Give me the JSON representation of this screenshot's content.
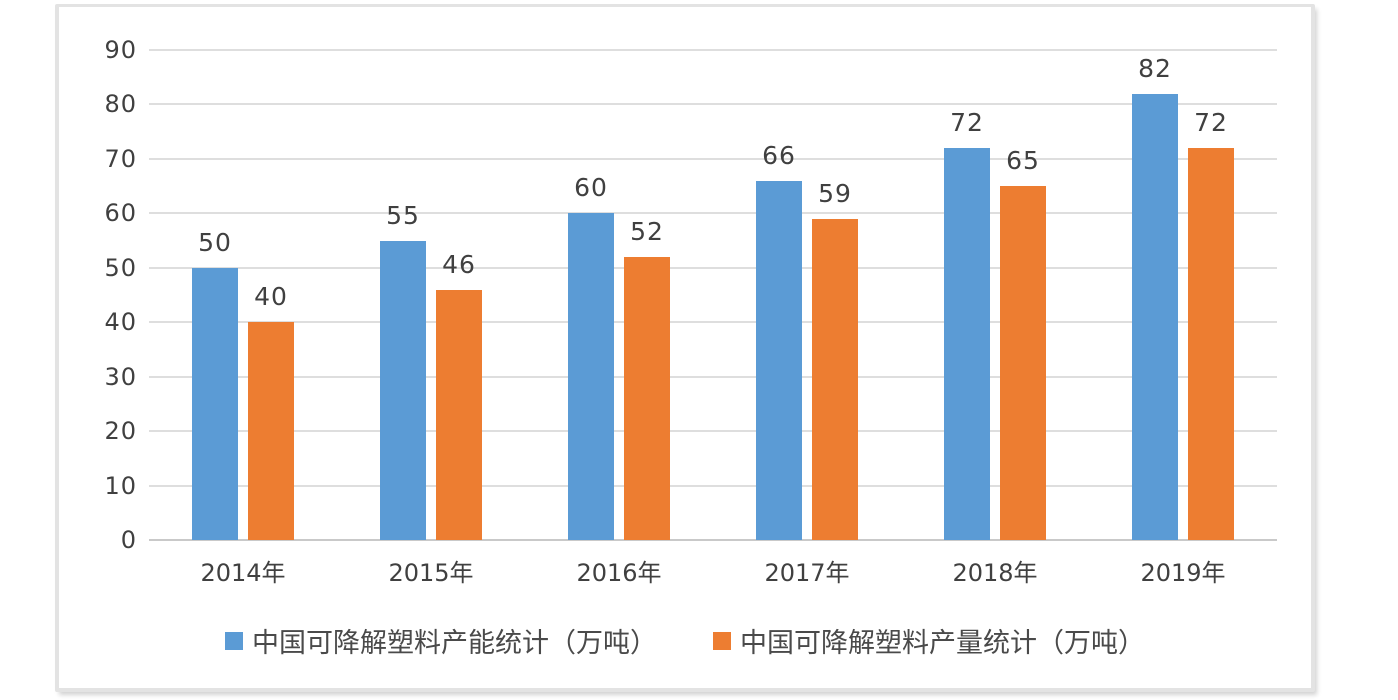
{
  "chart_data": {
    "type": "bar",
    "title": "",
    "xlabel": "",
    "ylabel": "",
    "categories": [
      "2014年",
      "2015年",
      "2016年",
      "2017年",
      "2018年",
      "2019年"
    ],
    "series": [
      {
        "name": "中国可降解塑料产能统计（万吨）",
        "color": "#5B9BD5",
        "values": [
          50,
          55,
          60,
          66,
          72,
          82
        ]
      },
      {
        "name": "中国可降解塑料产量统计（万吨）",
        "color": "#ED7D31",
        "values": [
          40,
          46,
          52,
          59,
          65,
          72
        ]
      }
    ],
    "ylim": [
      0,
      90
    ],
    "yticks": [
      0,
      10,
      20,
      30,
      40,
      50,
      60,
      70,
      80,
      90
    ],
    "grid": true,
    "data_labels": true,
    "legend_position": "bottom"
  },
  "colors": {
    "series_capacity": "#5B9BD5",
    "series_output": "#ED7D31",
    "gridline": "#DEDEDE",
    "axis_baseline": "#C9C9C9",
    "tick_text": "#404040",
    "legend_text": "#4A4A4A",
    "frame_border": "#E3E3E3",
    "background": "#FFFFFF"
  }
}
